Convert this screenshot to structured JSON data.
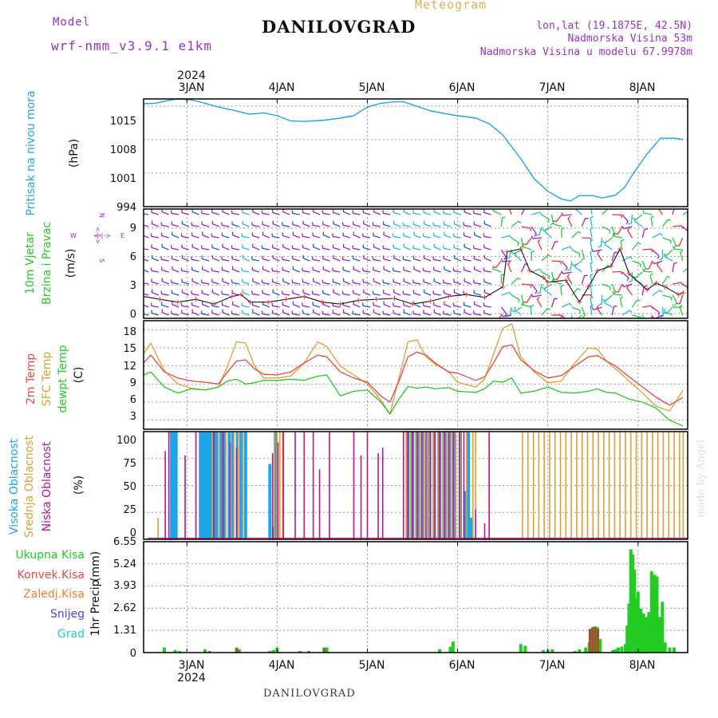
{
  "header": {
    "model_label": "Model",
    "model_name": "wrf-nmm_v3.9.1 e1km",
    "title": "DANILOVGRAD",
    "subtitle": "Meteogram",
    "lonlat": "lon,lat (19.1875E, 42.5N)",
    "altitude": "Nadmorska Visina 53m",
    "altitude_model": "Nadmorska Visina u modelu 67.9978m"
  },
  "footer": {
    "location": "DANILOVGRAD",
    "credit": "made by Angel"
  },
  "colors": {
    "pressure": "#1ea6ea",
    "temp2m": "#ee4444",
    "sfc": "#e0a030",
    "dewpt": "#22cc22",
    "high_cloud": "#1ea6ea",
    "mid_cloud": "#e0a030",
    "low_cloud": "#c0128a",
    "total": "#22cc22",
    "conv": "#ee4444",
    "frozen": "#f08030",
    "snow": "#4444ee",
    "hail": "#22cccc",
    "wind_purple": "#9922cc",
    "wind_blue": "#2255ee",
    "wind_cyan": "#22bbdd",
    "wind_green": "#22cc44",
    "wind_red": "#ee3333"
  },
  "chart_data": [
    {
      "type": "line",
      "panel": "pressure",
      "ylabel_a": "Pritisak na nivou mora",
      "ylabel_b": "(hPa)",
      "yticks": [
        "994",
        "1001",
        "1008",
        "1015"
      ],
      "ylim": [
        994,
        1016.5
      ],
      "xticks": [
        "3JAN",
        "4JAN",
        "5JAN",
        "6JAN",
        "7JAN",
        "8JAN"
      ],
      "year": "2024",
      "x_days": [
        2.52,
        2.65,
        2.8,
        2.9,
        3.05,
        3.2,
        3.35,
        3.5,
        3.7,
        3.85,
        4.0,
        4.15,
        4.3,
        4.5,
        4.7,
        4.85,
        5.0,
        5.15,
        5.3,
        5.4,
        5.5,
        5.7,
        5.9,
        6.0,
        6.2,
        6.35,
        6.5,
        6.7,
        6.85,
        7.0,
        7.15,
        7.25,
        7.35,
        7.5,
        7.6,
        7.75,
        7.85,
        7.95,
        8.1,
        8.25,
        8.4,
        8.5
      ],
      "values": [
        1015.5,
        1015.6,
        1016.2,
        1016.5,
        1016.3,
        1015.6,
        1014.8,
        1014.2,
        1013.3,
        1013.6,
        1013.0,
        1011.9,
        1011.8,
        1012.0,
        1012.5,
        1013.0,
        1014.8,
        1015.6,
        1015.9,
        1015.9,
        1015.3,
        1014.0,
        1013.3,
        1013.0,
        1012.5,
        1011.3,
        1009.0,
        1004.0,
        999.8,
        997.2,
        995.6,
        995.2,
        996.3,
        996.3,
        995.8,
        996.4,
        998.0,
        1001.0,
        1005.0,
        1008.3,
        1008.3,
        1008.0
      ]
    },
    {
      "type": "line",
      "panel": "wind",
      "ylabel_a": "10m Vjetar",
      "ylabel_b": "Brzina i Pravac",
      "ylabel_c": "(m/s)",
      "compass": [
        "N",
        "E",
        "S",
        "W",
        "<-|->"
      ],
      "yticks": [
        "0",
        "3",
        "6",
        "9"
      ],
      "ylim": [
        -0.5,
        11
      ],
      "x_days": [
        2.52,
        2.7,
        2.9,
        3.1,
        3.3,
        3.5,
        3.6,
        3.7,
        3.9,
        4.1,
        4.3,
        4.5,
        4.7,
        4.9,
        5.1,
        5.3,
        5.5,
        5.7,
        5.9,
        6.1,
        6.3,
        6.5,
        6.55,
        6.7,
        6.8,
        6.95,
        7.0,
        7.2,
        7.35,
        7.45,
        7.55,
        7.7,
        7.8,
        7.9,
        8.1,
        8.2,
        8.3,
        8.45,
        8.5
      ],
      "values": [
        1.8,
        1.5,
        1.2,
        1.5,
        1.0,
        1.8,
        2.0,
        1.2,
        1.2,
        1.5,
        1.8,
        1.2,
        1.0,
        1.4,
        1.5,
        1.6,
        1.0,
        1.3,
        1.8,
        2.0,
        1.7,
        2.8,
        6.5,
        6.8,
        4.5,
        3.8,
        3.3,
        3.5,
        1.2,
        2.8,
        4.5,
        5.0,
        6.8,
        4.2,
        2.5,
        3.2,
        2.8,
        2.0,
        2.2
      ]
    },
    {
      "type": "line",
      "panel": "temperature",
      "ylabel_a": "2m Temp",
      "ylabel_b": "SFC Temp",
      "ylabel_c": "dewpt Temp",
      "ylabel_d": "(C)",
      "yticks": [
        "3",
        "6",
        "9",
        "12",
        "15",
        "18"
      ],
      "ylim": [
        1.5,
        19.5
      ],
      "x": [
        2.52,
        2.6,
        2.75,
        2.9,
        3.05,
        3.2,
        3.35,
        3.45,
        3.55,
        3.65,
        3.75,
        3.85,
        4.0,
        4.15,
        4.3,
        4.45,
        4.55,
        4.7,
        4.85,
        5.0,
        5.15,
        5.25,
        5.35,
        5.45,
        5.55,
        5.65,
        5.75,
        5.9,
        6.0,
        6.2,
        6.3,
        6.4,
        6.5,
        6.6,
        6.7,
        6.85,
        7.0,
        7.15,
        7.3,
        7.45,
        7.55,
        7.65,
        7.75,
        7.9,
        8.05,
        8.2,
        8.35,
        8.5
      ],
      "series": [
        {
          "name": "2m Temp",
          "values": [
            12.5,
            13.8,
            11.0,
            10.0,
            9.5,
            9.3,
            9.0,
            11.0,
            12.8,
            13.0,
            11.5,
            10.6,
            10.5,
            11.0,
            12.5,
            13.8,
            13.5,
            11.0,
            10.0,
            9.3,
            7.0,
            6.0,
            9.5,
            13.5,
            14.3,
            13.8,
            12.5,
            11.0,
            10.8,
            9.6,
            10.2,
            12.5,
            15.2,
            15.5,
            13.0,
            11.2,
            10.0,
            10.4,
            12.0,
            13.5,
            13.7,
            12.8,
            12.0,
            10.2,
            8.5,
            6.8,
            5.5,
            6.8
          ]
        },
        {
          "name": "SFC Temp",
          "values": [
            14.0,
            15.8,
            11.2,
            9.0,
            8.3,
            8.0,
            8.5,
            12.0,
            16.0,
            15.8,
            12.0,
            10.0,
            10.0,
            10.3,
            12.5,
            16.0,
            15.2,
            12.0,
            10.5,
            9.0,
            6.3,
            4.0,
            10.0,
            16.0,
            16.3,
            13.5,
            12.3,
            11.0,
            9.3,
            8.5,
            9.8,
            14.0,
            18.2,
            19.0,
            13.5,
            11.0,
            9.2,
            9.5,
            12.5,
            15.0,
            14.8,
            12.8,
            11.5,
            9.5,
            7.5,
            5.3,
            4.5,
            8.0
          ]
        },
        {
          "name": "dewpt Temp",
          "values": [
            10.5,
            11.0,
            8.5,
            7.5,
            8.2,
            8.0,
            8.5,
            9.5,
            9.8,
            9.0,
            9.2,
            9.6,
            9.6,
            9.8,
            9.6,
            10.3,
            10.5,
            7.0,
            7.8,
            8.0,
            6.0,
            4.0,
            6.5,
            8.6,
            8.3,
            8.5,
            8.2,
            8.4,
            7.8,
            7.6,
            8.2,
            9.5,
            9.3,
            10.0,
            7.5,
            7.8,
            8.5,
            7.6,
            7.5,
            7.8,
            8.2,
            7.6,
            7.5,
            6.5,
            6.0,
            5.0,
            3.0,
            2.0
          ]
        }
      ]
    },
    {
      "type": "bar",
      "panel": "cloud",
      "ylabel_a": "Visoka Oblacnost",
      "ylabel_b": "Srednja Oblacnost",
      "ylabel_c": "Niska Oblacnost",
      "ylabel_d": "(%)",
      "yticks": [
        "0",
        "25",
        "50",
        "75",
        "100"
      ],
      "ylim": [
        0,
        100
      ],
      "series": [
        {
          "name": "Visoka Oblacnost",
          "x": [
            2.83,
            2.86,
            2.88,
            3.15,
            3.18,
            3.2,
            3.22,
            3.25,
            3.27,
            3.3,
            3.33,
            3.38,
            3.42,
            3.47,
            3.51,
            3.56,
            3.6,
            3.65,
            3.92,
            3.96,
            3.98,
            5.45,
            5.5,
            5.56,
            5.62,
            5.68,
            5.74,
            5.8,
            5.86,
            5.92,
            5.97,
            6.03,
            6.08,
            6.12,
            6.15
          ],
          "values": [
            100,
            100,
            100,
            100,
            100,
            100,
            100,
            100,
            100,
            100,
            100,
            100,
            100,
            100,
            100,
            100,
            100,
            100,
            70,
            12,
            100,
            100,
            100,
            100,
            100,
            100,
            100,
            100,
            100,
            100,
            100,
            100,
            45,
            100,
            20
          ]
        },
        {
          "name": "Srednja Oblacnost",
          "x": [
            2.68,
            3.28,
            3.36,
            3.43,
            3.52,
            3.57,
            3.62,
            3.97,
            4.0,
            4.03,
            4.06,
            5.43,
            5.48,
            5.53,
            5.58,
            5.63,
            5.68,
            5.73,
            5.78,
            5.83,
            5.88,
            5.93,
            5.98,
            6.03,
            6.1,
            6.17,
            6.2,
            6.72,
            6.78,
            6.84,
            6.9,
            6.96,
            7.02,
            7.08,
            7.14,
            7.2,
            7.26,
            7.32,
            7.38,
            7.44,
            7.5,
            7.56,
            7.62,
            7.68,
            7.74,
            7.8,
            7.86,
            7.92,
            7.98,
            8.04,
            8.1,
            8.16,
            8.22,
            8.28,
            8.34,
            8.4,
            8.46,
            8.5
          ],
          "values": [
            20,
            100,
            100,
            100,
            100,
            100,
            100,
            100,
            100,
            100,
            100,
            100,
            100,
            100,
            100,
            100,
            100,
            100,
            100,
            100,
            100,
            100,
            100,
            100,
            100,
            100,
            100,
            100,
            100,
            100,
            100,
            100,
            100,
            100,
            100,
            100,
            100,
            100,
            100,
            100,
            100,
            100,
            100,
            100,
            100,
            100,
            100,
            100,
            100,
            100,
            100,
            100,
            100,
            100,
            100,
            100,
            100,
            100
          ]
        },
        {
          "name": "Niska Oblacnost",
          "x": [
            2.76,
            2.8,
            2.98,
            3.1,
            3.3,
            3.4,
            3.48,
            3.55,
            3.95,
            4.01,
            4.07,
            4.2,
            4.3,
            4.4,
            4.47,
            4.58,
            4.85,
            4.93,
            5.0,
            5.12,
            5.17,
            5.4,
            5.45,
            5.5,
            5.55,
            5.6,
            5.65,
            5.7,
            5.75,
            5.8,
            5.85,
            5.9,
            5.95,
            6.02,
            6.07,
            6.2,
            6.3,
            6.35
          ],
          "values": [
            82,
            100,
            78,
            100,
            100,
            100,
            90,
            85,
            80,
            90,
            100,
            100,
            100,
            100,
            65,
            100,
            100,
            78,
            100,
            80,
            85,
            100,
            100,
            100,
            100,
            100,
            100,
            100,
            100,
            100,
            100,
            100,
            100,
            100,
            100,
            28,
            15,
            100
          ]
        }
      ]
    },
    {
      "type": "bar",
      "panel": "precipitation",
      "ylabel_a": "1hr Precip",
      "ylabel_b": "(mm)",
      "legend": [
        "Ukupna Kisa",
        "Konvek.Kisa",
        "Zaledj.Kisa",
        "Snijeg",
        "Grad"
      ],
      "yticks": [
        "0",
        "1.31",
        "2.62",
        "3.93",
        "5.24",
        "6.55"
      ],
      "ylim": [
        0,
        6.55
      ],
      "xticks": [
        "3JAN",
        "4JAN",
        "5JAN",
        "6JAN",
        "7JAN",
        "8JAN"
      ],
      "year": "2024",
      "series": [
        {
          "name": "Ukupna Kisa",
          "x": [
            2.75,
            2.87,
            2.92,
            3.2,
            3.25,
            3.55,
            3.58,
            3.92,
            3.96,
            4.0,
            4.25,
            4.35,
            4.52,
            4.55,
            5.8,
            5.92,
            5.95,
            6.7,
            6.75,
            6.95,
            7.0,
            7.05,
            7.3,
            7.35,
            7.42,
            7.46,
            7.49,
            7.52,
            7.55,
            7.58,
            7.72,
            7.75,
            7.78,
            7.82,
            7.86,
            7.88,
            7.9,
            7.92,
            7.94,
            7.96,
            7.98,
            8.0,
            8.03,
            8.06,
            8.09,
            8.12,
            8.15,
            8.18,
            8.21,
            8.24,
            8.27,
            8.3,
            8.35,
            8.4
          ],
          "values": [
            0.3,
            0.15,
            0.1,
            0.2,
            0.1,
            0.3,
            0.2,
            0.1,
            0.15,
            0.3,
            0.1,
            0.1,
            0.3,
            0.3,
            0.2,
            0.35,
            0.65,
            0.5,
            0.4,
            0.15,
            0.15,
            0.2,
            0.1,
            0.2,
            0.3,
            0.6,
            1.4,
            1.55,
            1.5,
            0.8,
            0.15,
            0.2,
            0.3,
            0.35,
            0.5,
            1.6,
            2.9,
            6.1,
            5.8,
            4.9,
            3.2,
            3.6,
            2.6,
            2.3,
            2.1,
            2.4,
            4.8,
            4.6,
            4.5,
            2.1,
            3.0,
            0.6,
            0.3,
            0.3
          ]
        },
        {
          "name": "Konvek.Kisa",
          "x": [
            3.56,
            4.53,
            7.47,
            7.5,
            7.53,
            7.56
          ],
          "values": [
            0.25,
            0.25,
            1.4,
            1.5,
            1.5,
            1.4
          ]
        }
      ]
    }
  ]
}
